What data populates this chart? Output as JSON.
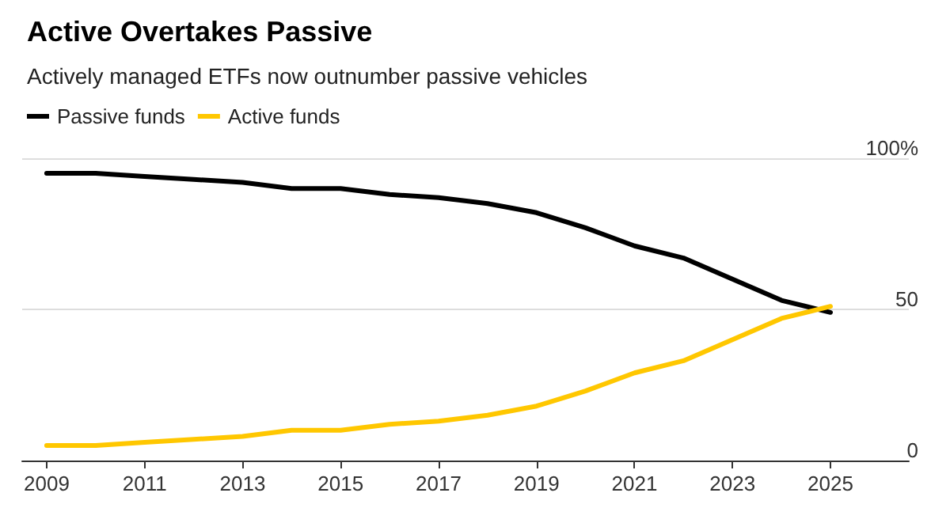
{
  "chart_data": {
    "type": "line",
    "title": "Active Overtakes Passive",
    "subtitle": "Actively managed ETFs now outnumber passive vehicles",
    "x": [
      2009,
      2010,
      2011,
      2012,
      2013,
      2014,
      2015,
      2016,
      2017,
      2018,
      2019,
      2020,
      2021,
      2022,
      2023,
      2024,
      2025
    ],
    "series": [
      {
        "name": "Passive funds",
        "color": "#000000",
        "values": [
          95,
          95,
          94,
          93,
          92,
          90,
          90,
          88,
          87,
          85,
          82,
          77,
          71,
          67,
          60,
          53,
          49
        ]
      },
      {
        "name": "Active funds",
        "color": "#ffc700",
        "values": [
          5,
          5,
          6,
          7,
          8,
          10,
          10,
          12,
          13,
          15,
          18,
          23,
          29,
          33,
          40,
          47,
          51
        ]
      }
    ],
    "xlim": [
      2008.5,
      2026.6
    ],
    "xticks": [
      2009,
      2011,
      2013,
      2015,
      2017,
      2019,
      2021,
      2023,
      2025
    ],
    "ylim": [
      0,
      100
    ],
    "yticks": [
      0,
      50,
      {
        "value": 100,
        "label": "100%"
      }
    ],
    "grid": "y",
    "legend": "top left",
    "marker": "none",
    "line_style": "solid"
  }
}
